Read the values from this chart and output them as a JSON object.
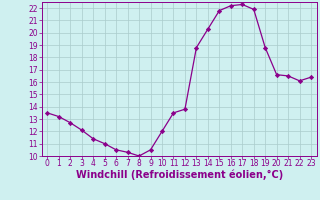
{
  "x": [
    0,
    1,
    2,
    3,
    4,
    5,
    6,
    7,
    8,
    9,
    10,
    11,
    12,
    13,
    14,
    15,
    16,
    17,
    18,
    19,
    20,
    21,
    22,
    23
  ],
  "y": [
    13.5,
    13.2,
    12.7,
    12.1,
    11.4,
    11.0,
    10.5,
    10.3,
    10.0,
    10.5,
    12.0,
    13.5,
    13.8,
    18.8,
    20.3,
    21.8,
    22.2,
    22.3,
    21.9,
    18.8,
    16.6,
    16.5,
    16.1,
    16.4
  ],
  "line_color": "#8B008B",
  "marker": "D",
  "marker_size": 2.2,
  "bg_color": "#cff0f0",
  "grid_color": "#aacccc",
  "xlabel": "Windchill (Refroidissement éolien,°C)",
  "xlabel_color": "#8B008B",
  "ylim": [
    10,
    22.5
  ],
  "xlim": [
    -0.5,
    23.5
  ],
  "yticks": [
    10,
    11,
    12,
    13,
    14,
    15,
    16,
    17,
    18,
    19,
    20,
    21,
    22
  ],
  "xticks": [
    0,
    1,
    2,
    3,
    4,
    5,
    6,
    7,
    8,
    9,
    10,
    11,
    12,
    13,
    14,
    15,
    16,
    17,
    18,
    19,
    20,
    21,
    22,
    23
  ],
  "tick_color": "#8B008B",
  "tick_fontsize": 5.5,
  "xlabel_fontsize": 7.0,
  "spine_color": "#8B008B"
}
